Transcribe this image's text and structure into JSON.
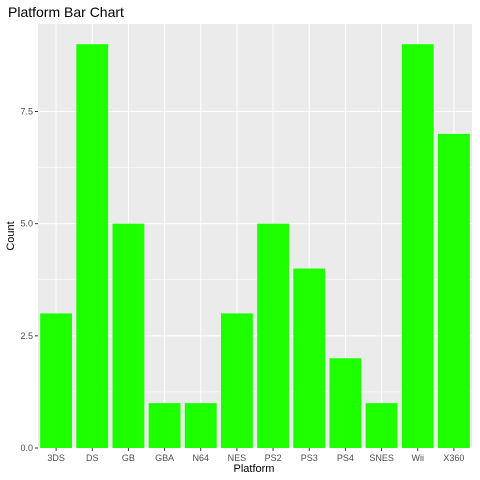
{
  "chart_data": {
    "type": "bar",
    "title": "Platform Bar Chart",
    "xlabel": "Platform",
    "ylabel": "Count",
    "categories": [
      "3DS",
      "DS",
      "GB",
      "GBA",
      "N64",
      "NES",
      "PS2",
      "PS3",
      "PS4",
      "SNES",
      "Wii",
      "X360"
    ],
    "values": [
      3,
      9,
      5,
      1,
      1,
      3,
      5,
      4,
      2,
      1,
      9,
      7
    ],
    "ylim": [
      0,
      9.45
    ],
    "yticks": [
      0,
      2.5,
      5,
      7.5
    ],
    "ytick_labels": [
      "0.0",
      "2.5",
      "5.0",
      "7.5"
    ],
    "grid": true,
    "legend": "none",
    "colors": {
      "bar": "#1eff00",
      "panel": "#ebebeb",
      "gridline": "#ffffff",
      "tick": "#333333"
    }
  }
}
